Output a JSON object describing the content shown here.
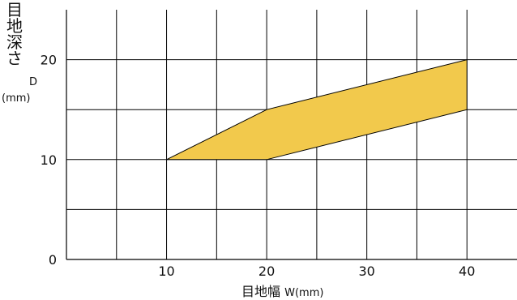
{
  "chart_data": {
    "type": "area",
    "x_range": [
      0,
      45
    ],
    "y_range": [
      0,
      25
    ],
    "x_ticks": [
      10,
      20,
      30,
      40
    ],
    "y_ticks": [
      0,
      10,
      20
    ],
    "x_grid": [
      5,
      10,
      15,
      20,
      25,
      30,
      35,
      40
    ],
    "y_grid": [
      5,
      10,
      15,
      20
    ],
    "grid": true,
    "region": {
      "upper": [
        {
          "x": 10,
          "y": 10
        },
        {
          "x": 20,
          "y": 15
        },
        {
          "x": 40,
          "y": 20
        }
      ],
      "lower": [
        {
          "x": 10,
          "y": 10
        },
        {
          "x": 20,
          "y": 10
        },
        {
          "x": 40,
          "y": 15
        }
      ],
      "fill_color": "#f2c94c"
    },
    "ylabel": {
      "chars": [
        "目",
        "地",
        "深",
        "さ"
      ],
      "symbol": "D",
      "unit": "(mm)"
    },
    "xlabel": {
      "text": "目地幅",
      "unit": "W(mm)"
    }
  }
}
